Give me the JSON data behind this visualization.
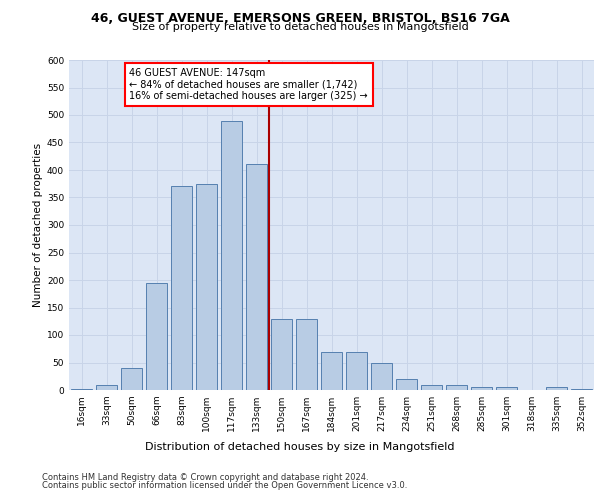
{
  "title1": "46, GUEST AVENUE, EMERSONS GREEN, BRISTOL, BS16 7GA",
  "title2": "Size of property relative to detached houses in Mangotsfield",
  "xlabel": "Distribution of detached houses by size in Mangotsfield",
  "ylabel": "Number of detached properties",
  "categories": [
    "16sqm",
    "33sqm",
    "50sqm",
    "66sqm",
    "83sqm",
    "100sqm",
    "117sqm",
    "133sqm",
    "150sqm",
    "167sqm",
    "184sqm",
    "201sqm",
    "217sqm",
    "234sqm",
    "251sqm",
    "268sqm",
    "285sqm",
    "301sqm",
    "318sqm",
    "335sqm",
    "352sqm"
  ],
  "bar_values": [
    2,
    10,
    40,
    195,
    370,
    375,
    490,
    410,
    130,
    130,
    70,
    70,
    50,
    20,
    10,
    10,
    5,
    5,
    0,
    5,
    2
  ],
  "bar_color": "#b8cce4",
  "bar_edge_color": "#5580b0",
  "grid_color": "#c8d4e8",
  "bg_color": "#dce6f5",
  "annotation_text1": "46 GUEST AVENUE: 147sqm",
  "annotation_text2": "← 84% of detached houses are smaller (1,742)",
  "annotation_text3": "16% of semi-detached houses are larger (325) →",
  "footer1": "Contains HM Land Registry data © Crown copyright and database right 2024.",
  "footer2": "Contains public sector information licensed under the Open Government Licence v3.0.",
  "ylim": [
    0,
    600
  ],
  "yticks": [
    0,
    50,
    100,
    150,
    200,
    250,
    300,
    350,
    400,
    450,
    500,
    550,
    600
  ],
  "title1_fontsize": 9,
  "title2_fontsize": 8,
  "ylabel_fontsize": 7.5,
  "xlabel_fontsize": 8,
  "tick_fontsize": 6.5,
  "ann_fontsize": 7,
  "footer_fontsize": 6
}
